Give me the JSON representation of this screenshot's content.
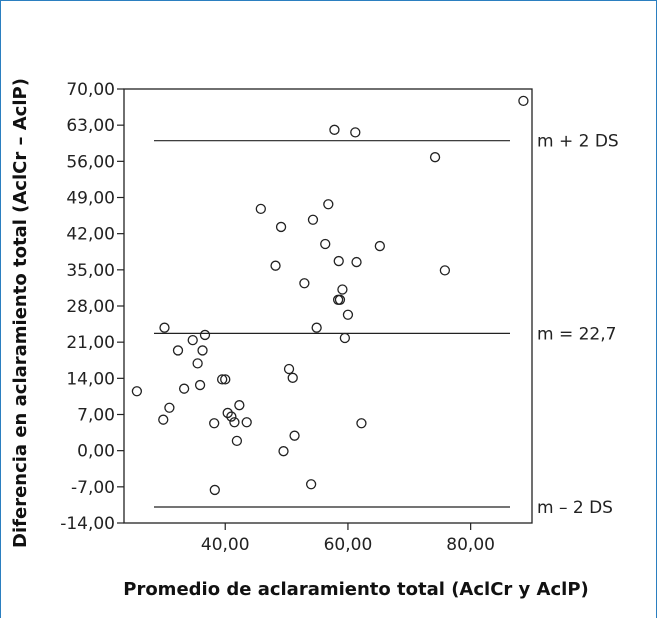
{
  "chart_data": {
    "type": "scatter",
    "title": "",
    "xlabel": "Promedio de aclaramiento total (AclCr y AclP)",
    "ylabel": "Diferencia en aclaramiento total (AclCr – AclP)",
    "xlim": [
      23.5,
      90.0
    ],
    "ylim": [
      -14.0,
      70.0
    ],
    "x_ticks": [
      40,
      60,
      80
    ],
    "x_tick_labels": [
      "40,00",
      "60,00",
      "80,00"
    ],
    "y_ticks": [
      70,
      63,
      56,
      49,
      42,
      35,
      28,
      21,
      14,
      7,
      0,
      -7,
      -14
    ],
    "y_tick_labels": [
      "70,00",
      "63,00",
      "56,00",
      "49,00",
      "42,00",
      "35,00",
      "28,00",
      "21,00",
      "14,00",
      "7,00",
      "0,00",
      "-7,00",
      "-14,00"
    ],
    "grid": false,
    "reference_lines": [
      {
        "y": 60.0,
        "label": "m + 2 DS"
      },
      {
        "y": 22.7,
        "label": "m = 22,7"
      },
      {
        "y": -10.9,
        "label": "m – 2 DS"
      }
    ],
    "points": [
      {
        "x": 25.6,
        "y": 11.5
      },
      {
        "x": 29.9,
        "y": 6.0
      },
      {
        "x": 30.1,
        "y": 23.8
      },
      {
        "x": 30.9,
        "y": 8.3
      },
      {
        "x": 32.3,
        "y": 19.4
      },
      {
        "x": 33.3,
        "y": 12.0
      },
      {
        "x": 34.7,
        "y": 21.4
      },
      {
        "x": 35.5,
        "y": 16.9
      },
      {
        "x": 35.9,
        "y": 12.7
      },
      {
        "x": 36.3,
        "y": 19.4
      },
      {
        "x": 36.7,
        "y": 22.4
      },
      {
        "x": 38.2,
        "y": 5.3
      },
      {
        "x": 38.3,
        "y": -7.6
      },
      {
        "x": 39.5,
        "y": 13.8
      },
      {
        "x": 40.0,
        "y": 13.8
      },
      {
        "x": 40.4,
        "y": 7.3
      },
      {
        "x": 41.0,
        "y": 6.6
      },
      {
        "x": 41.5,
        "y": 5.5
      },
      {
        "x": 41.9,
        "y": 1.9
      },
      {
        "x": 42.3,
        "y": 8.8
      },
      {
        "x": 43.5,
        "y": 5.5
      },
      {
        "x": 45.8,
        "y": 46.8
      },
      {
        "x": 48.2,
        "y": 35.8
      },
      {
        "x": 49.1,
        "y": 43.3
      },
      {
        "x": 49.5,
        "y": -0.1
      },
      {
        "x": 50.4,
        "y": 15.8
      },
      {
        "x": 51.0,
        "y": 14.1
      },
      {
        "x": 51.3,
        "y": 2.9
      },
      {
        "x": 52.9,
        "y": 32.4
      },
      {
        "x": 54.0,
        "y": -6.5
      },
      {
        "x": 54.3,
        "y": 44.7
      },
      {
        "x": 54.9,
        "y": 23.8
      },
      {
        "x": 56.3,
        "y": 40.0
      },
      {
        "x": 56.8,
        "y": 47.7
      },
      {
        "x": 57.8,
        "y": 62.1
      },
      {
        "x": 58.5,
        "y": 36.7
      },
      {
        "x": 58.4,
        "y": 29.2
      },
      {
        "x": 58.7,
        "y": 29.2
      },
      {
        "x": 59.1,
        "y": 31.2
      },
      {
        "x": 59.5,
        "y": 21.8
      },
      {
        "x": 60.0,
        "y": 26.3
      },
      {
        "x": 61.2,
        "y": 61.6
      },
      {
        "x": 61.4,
        "y": 36.5
      },
      {
        "x": 62.2,
        "y": 5.3
      },
      {
        "x": 65.2,
        "y": 39.6
      },
      {
        "x": 74.2,
        "y": 56.8
      },
      {
        "x": 75.8,
        "y": 34.9
      },
      {
        "x": 88.6,
        "y": 67.7
      }
    ]
  }
}
